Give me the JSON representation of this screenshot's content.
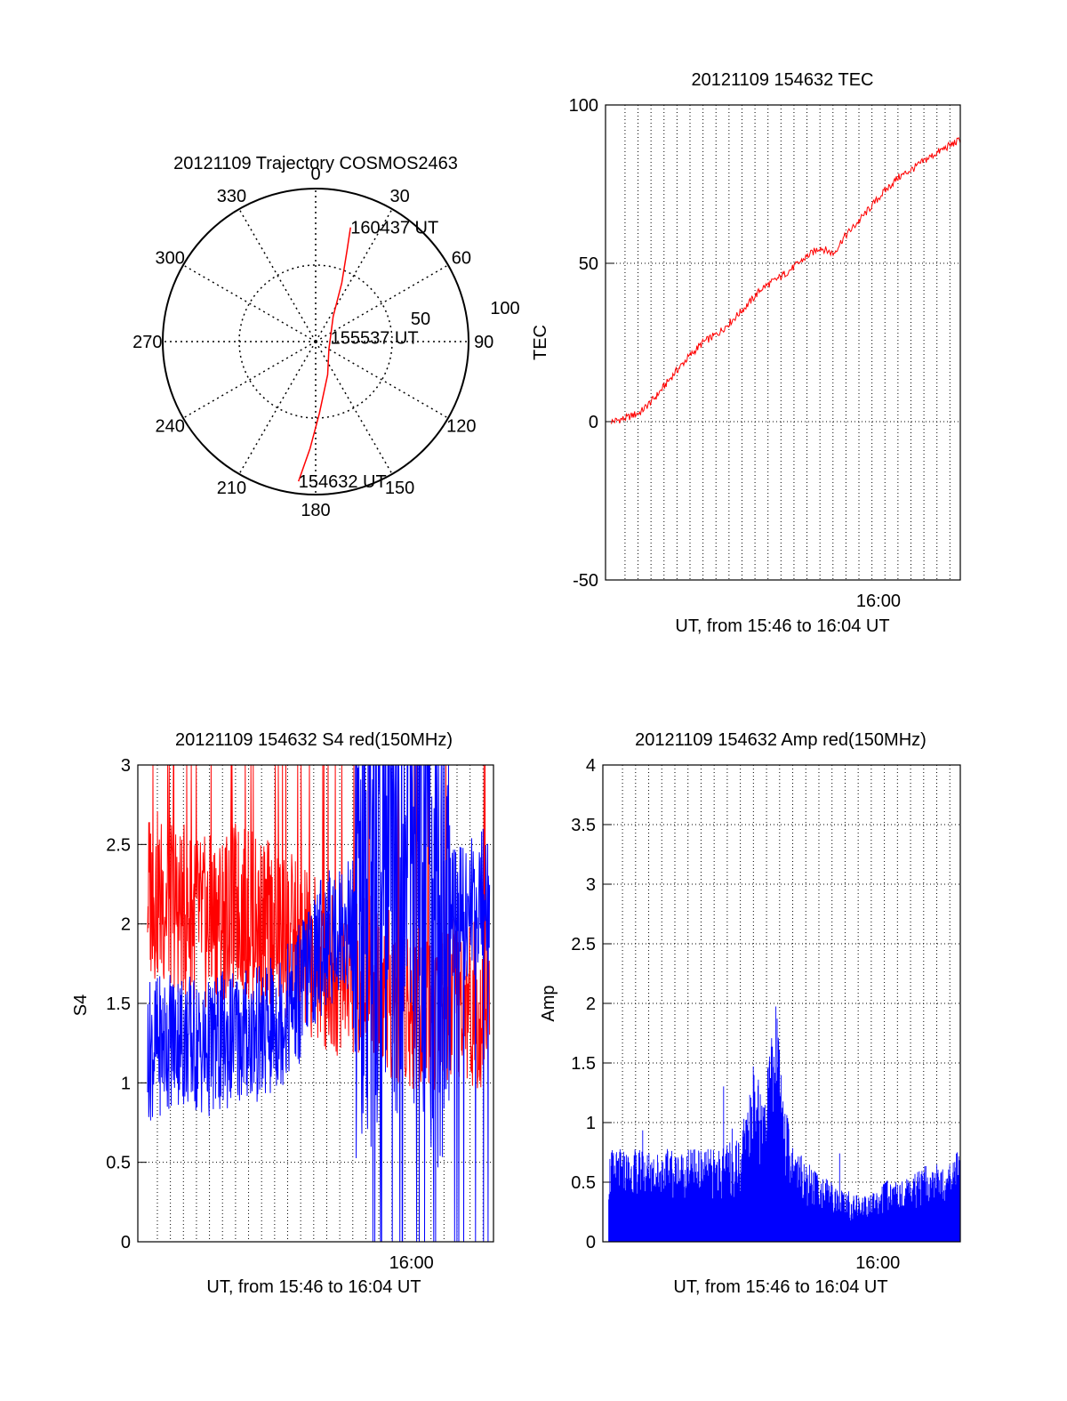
{
  "chart_data": [
    {
      "type": "polar",
      "title": "20121109 Trajectory COSMOS2463",
      "angle_labels": [
        "0",
        "30",
        "60",
        "90",
        "120",
        "150",
        "180",
        "210",
        "240",
        "270",
        "300",
        "330"
      ],
      "radius_labels": [
        "50",
        "100"
      ],
      "rlim": [
        0,
        100
      ],
      "trajectory": {
        "color": "#ff0000",
        "points": [
          {
            "az": 187,
            "r": 92
          },
          {
            "az": 183,
            "r": 70
          },
          {
            "az": 177,
            "r": 47
          },
          {
            "az": 160,
            "r": 23
          },
          {
            "az": 120,
            "r": 10
          },
          {
            "az": 75,
            "r": 10
          },
          {
            "az": 35,
            "r": 20
          },
          {
            "az": 24,
            "r": 42
          },
          {
            "az": 19,
            "r": 63
          },
          {
            "az": 17,
            "r": 78
          }
        ]
      },
      "annotations": [
        {
          "text": "160437 UT",
          "az": 17,
          "r": 78
        },
        {
          "text": "155537 UT",
          "az": 75,
          "r": 10
        },
        {
          "text": "154632 UT",
          "az": 187,
          "r": 92
        }
      ]
    },
    {
      "type": "line",
      "title": "20121109 154632 TEC",
      "xlabel": "UT, from 15:46 to 16:04 UT",
      "ylabel": "TEC",
      "xlim": [
        0,
        18.2
      ],
      "ylim": [
        -50,
        100
      ],
      "yticks": [
        "100",
        "50",
        "0",
        "-50"
      ],
      "xtick_labels": [
        {
          "label": "16:00",
          "x": 14
        }
      ],
      "grid": true,
      "series": [
        {
          "color": "#ff0000",
          "x": [
            0.3,
            1.0,
            1.8,
            2.6,
            3.5,
            4.2,
            5.0,
            5.8,
            6.5,
            7.3,
            8.0,
            8.8,
            9.5,
            10.3,
            11.0,
            11.7,
            12.2,
            12.8,
            13.5,
            14.2,
            15.0,
            15.8,
            16.5,
            17.3,
            18.2
          ],
          "y": [
            0,
            1,
            3,
            8,
            15,
            20,
            25,
            28,
            32,
            37,
            42,
            45,
            48,
            52,
            55,
            53,
            58,
            62,
            67,
            72,
            77,
            80,
            83,
            86,
            89
          ]
        }
      ]
    },
    {
      "type": "line",
      "title": "20121109 154632 S4 red(150MHz)",
      "xlabel": "UT, from 15:46 to 16:04 UT",
      "ylabel": "S4",
      "xlim": [
        0,
        18.2
      ],
      "ylim": [
        0,
        3
      ],
      "yticks": [
        "3",
        "2.5",
        "2",
        "1.5",
        "1",
        "0.5",
        "0"
      ],
      "xtick_labels": [
        {
          "label": "16:00",
          "x": 14
        }
      ],
      "grid": true,
      "series": [
        {
          "color": "#ff0000",
          "x": [
            0.5,
            2.0,
            3.5,
            5.0,
            6.5,
            8.0,
            9.5,
            11.0,
            12.5,
            14.0,
            15.5,
            17.0,
            18.0
          ],
          "y": [
            2.2,
            2.1,
            2.0,
            2.1,
            2.0,
            1.9,
            1.7,
            1.7,
            1.6,
            1.5,
            1.5,
            1.5,
            1.5
          ]
        },
        {
          "color": "#0000ff",
          "x": [
            0.5,
            2.0,
            3.5,
            5.0,
            6.5,
            8.0,
            9.5,
            11.0,
            12.5,
            14.0,
            15.5,
            17.0,
            18.0
          ],
          "y": [
            1.2,
            1.3,
            1.2,
            1.3,
            1.3,
            1.5,
            1.9,
            2.0,
            2.2,
            2.4,
            2.0,
            2.1,
            2.2
          ]
        }
      ]
    },
    {
      "type": "area",
      "title": "20121109 154632 Amp red(150MHz)",
      "xlabel": "UT, from 15:46 to 16:04 UT",
      "ylabel": "Amp",
      "xlim": [
        0,
        18.2
      ],
      "ylim": [
        0,
        4
      ],
      "yticks": [
        "4",
        "3.5",
        "3",
        "2.5",
        "2",
        "1.5",
        "1",
        "0.5",
        "0"
      ],
      "xtick_labels": [
        {
          "label": "16:00",
          "x": 14
        }
      ],
      "grid": true,
      "series": [
        {
          "color": "#0000ff",
          "x": [
            0.3,
            1.5,
            3.0,
            4.5,
            6.0,
            7.0,
            7.7,
            8.2,
            8.8,
            9.5,
            10.5,
            11.5,
            12.5,
            13.5,
            14.5,
            15.5,
            16.5,
            17.5,
            18.2
          ],
          "y": [
            0.6,
            0.6,
            0.6,
            0.6,
            0.6,
            0.7,
            1.2,
            0.9,
            1.6,
            0.7,
            0.5,
            0.4,
            0.3,
            0.3,
            0.4,
            0.4,
            0.5,
            0.5,
            0.6
          ]
        }
      ]
    }
  ]
}
